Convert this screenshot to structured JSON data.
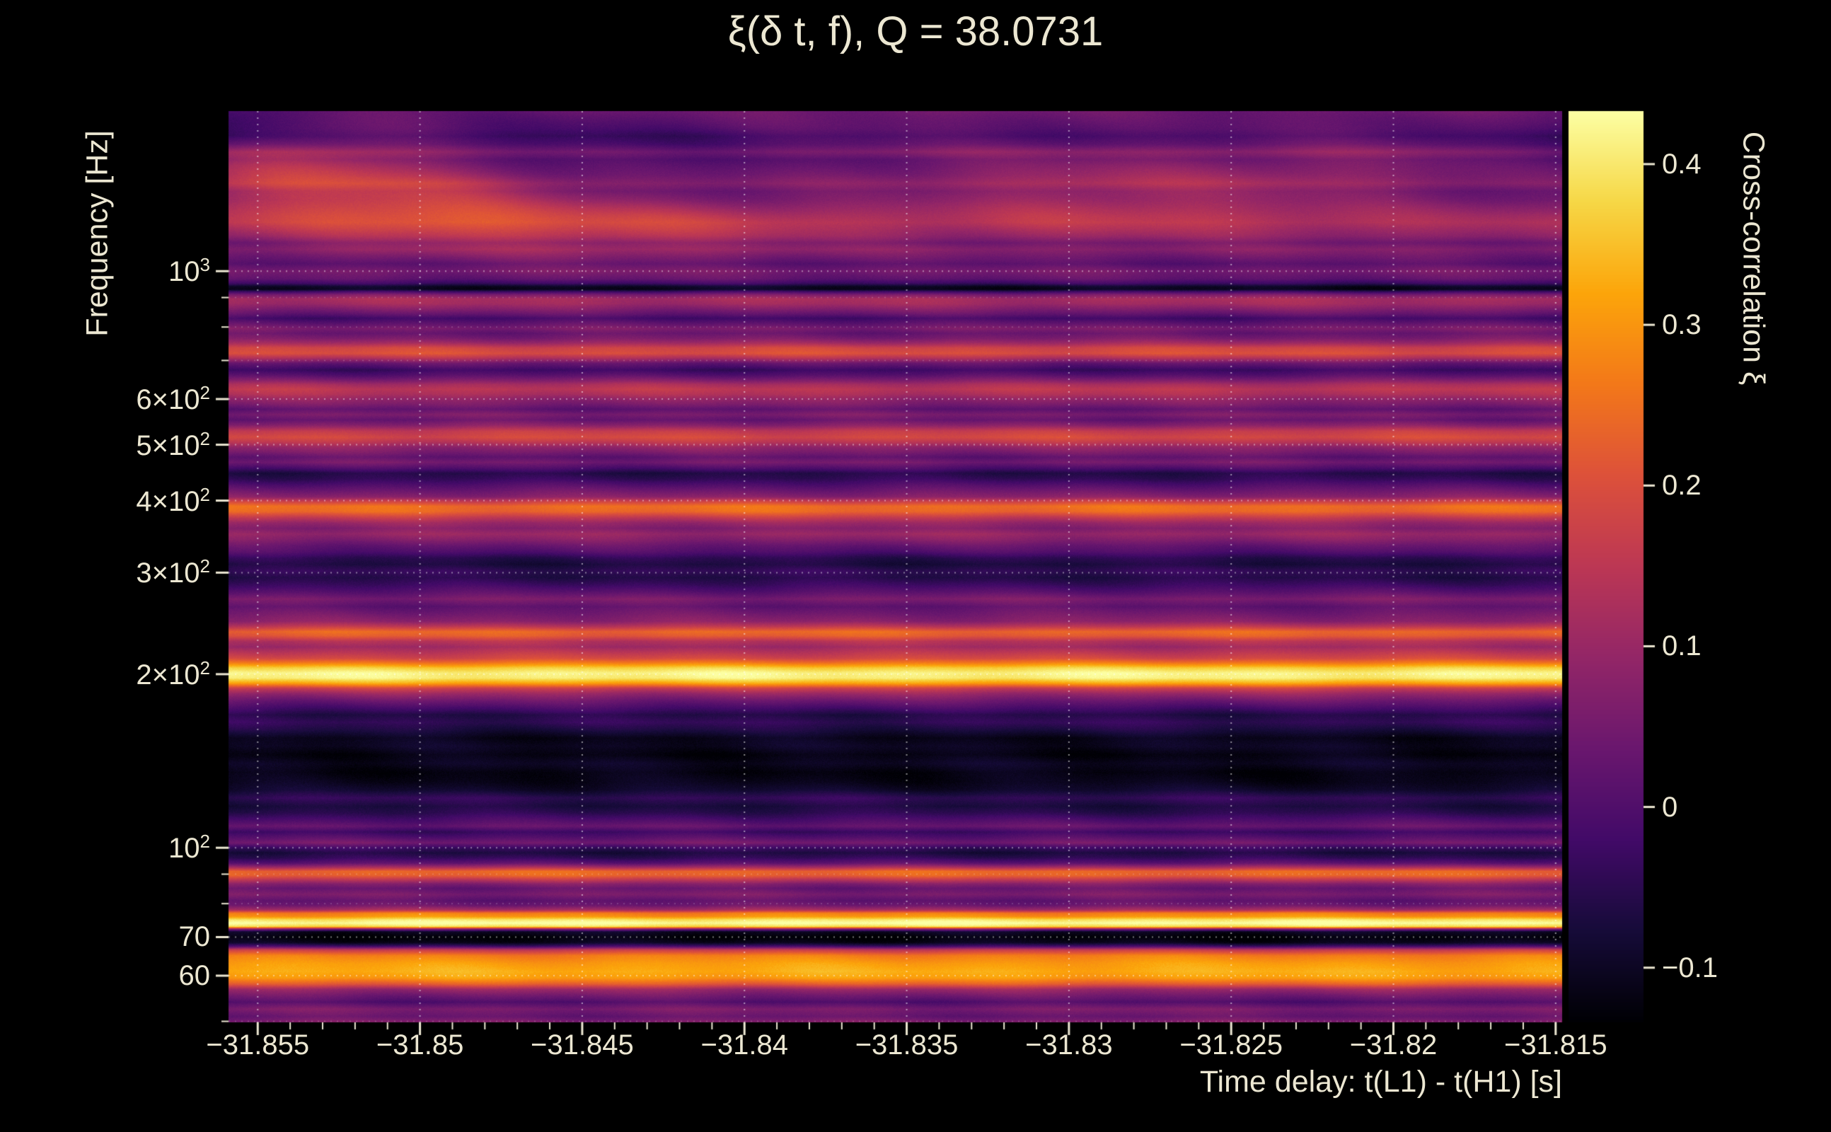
{
  "colors": {
    "background": "#000000",
    "text": "#ece7d2",
    "grid": "#ffffff"
  },
  "chart_data": {
    "type": "heatmap",
    "title": "ξ(δ t, f), Q = 38.0731",
    "xlabel": "Time delay: t(L1) - t(H1) [s]",
    "ylabel": "Frequency [Hz]",
    "colorbar_label": "Cross-correlation ξ",
    "colormap": "inferno",
    "x_range": [
      -31.8559,
      -31.8148
    ],
    "y_range": [
      49.8,
      1895
    ],
    "y_scale": "log",
    "color_range": [
      -0.134,
      0.433
    ],
    "x_ticks": [
      {
        "value": -31.855,
        "label": "−31.855"
      },
      {
        "value": -31.85,
        "label": "−31.85"
      },
      {
        "value": -31.845,
        "label": "−31.845"
      },
      {
        "value": -31.84,
        "label": "−31.84"
      },
      {
        "value": -31.835,
        "label": "−31.835"
      },
      {
        "value": -31.83,
        "label": "−31.83"
      },
      {
        "value": -31.825,
        "label": "−31.825"
      },
      {
        "value": -31.82,
        "label": "−31.82"
      },
      {
        "value": -31.815,
        "label": "−31.815"
      }
    ],
    "x_minor_step": 0.001,
    "y_ticks": [
      {
        "value": 1000,
        "base": "10",
        "exp": "3"
      },
      {
        "value": 600,
        "base": "6×10",
        "exp": "2"
      },
      {
        "value": 500,
        "base": "5×10",
        "exp": "2"
      },
      {
        "value": 400,
        "base": "4×10",
        "exp": "2"
      },
      {
        "value": 300,
        "base": "3×10",
        "exp": "2"
      },
      {
        "value": 200,
        "base": "2×10",
        "exp": "2"
      },
      {
        "value": 100,
        "base": "10",
        "exp": "2"
      },
      {
        "value": 70,
        "base": "70",
        "exp": ""
      },
      {
        "value": 60,
        "base": "60",
        "exp": ""
      }
    ],
    "y_minor_ticks": [
      50,
      80,
      90,
      700,
      800,
      900
    ],
    "colorbar_ticks": [
      {
        "value": 0.4,
        "label": "0.4"
      },
      {
        "value": 0.3,
        "label": "0.3"
      },
      {
        "value": 0.2,
        "label": "0.2"
      },
      {
        "value": 0.1,
        "label": "0.1"
      },
      {
        "value": 0,
        "label": "0"
      },
      {
        "value": -0.1,
        "label": "−0.1"
      }
    ],
    "colormap_stops": [
      [
        0.0,
        "#000004"
      ],
      [
        0.1,
        "#160b39"
      ],
      [
        0.2,
        "#420a68"
      ],
      [
        0.3,
        "#6a176e"
      ],
      [
        0.4,
        "#932667"
      ],
      [
        0.5,
        "#bc3754"
      ],
      [
        0.6,
        "#dd513a"
      ],
      [
        0.7,
        "#f37819"
      ],
      [
        0.8,
        "#fca50a"
      ],
      [
        0.9,
        "#f6d746"
      ],
      [
        1.0,
        "#fcffa4"
      ]
    ],
    "ripple_amp": 0.018,
    "grain_amp": 0.016,
    "bands": [
      [
        49.8,
        0.07
      ],
      [
        51,
        0.03
      ],
      [
        52.5,
        0.06
      ],
      [
        54,
        0.0
      ],
      [
        55.5,
        0.05
      ],
      [
        56.8,
        0.1
      ],
      [
        58,
        0.22
      ],
      [
        59.5,
        0.31
      ],
      [
        61,
        0.33
      ],
      [
        63,
        0.31
      ],
      [
        65,
        0.27
      ],
      [
        66.5,
        0.16
      ],
      [
        67.5,
        -0.02
      ],
      [
        68.5,
        -0.11
      ],
      [
        70,
        -0.13
      ],
      [
        71.5,
        -0.1
      ],
      [
        72.3,
        0.08
      ],
      [
        73,
        0.38
      ],
      [
        74,
        0.44
      ],
      [
        75,
        0.4
      ],
      [
        76,
        0.3
      ],
      [
        77,
        0.27
      ],
      [
        78,
        0.12
      ],
      [
        79.5,
        0.04
      ],
      [
        81,
        0.02
      ],
      [
        83,
        0.06
      ],
      [
        85,
        0.03
      ],
      [
        86.5,
        0.07
      ],
      [
        88,
        0.15
      ],
      [
        89.5,
        0.23
      ],
      [
        91,
        0.24
      ],
      [
        92.5,
        0.12
      ],
      [
        94,
        0.02
      ],
      [
        96,
        -0.04
      ],
      [
        98,
        -0.07
      ],
      [
        100,
        -0.03
      ],
      [
        102,
        0.05
      ],
      [
        104,
        0.01
      ],
      [
        106.5,
        -0.03
      ],
      [
        109,
        0.03
      ],
      [
        112,
        -0.01
      ],
      [
        115,
        -0.05
      ],
      [
        118,
        -0.07
      ],
      [
        122,
        -0.04
      ],
      [
        126,
        -0.09
      ],
      [
        130,
        -0.11
      ],
      [
        135,
        -0.12
      ],
      [
        140,
        -0.1
      ],
      [
        145,
        -0.12
      ],
      [
        150,
        -0.1
      ],
      [
        155,
        -0.11
      ],
      [
        160,
        -0.07
      ],
      [
        165,
        -0.04
      ],
      [
        170,
        -0.06
      ],
      [
        175,
        -0.01
      ],
      [
        180,
        0.04
      ],
      [
        185,
        0.1
      ],
      [
        189,
        0.17
      ],
      [
        193,
        0.32
      ],
      [
        197,
        0.41
      ],
      [
        201,
        0.42
      ],
      [
        205,
        0.37
      ],
      [
        209,
        0.27
      ],
      [
        213,
        0.19
      ],
      [
        218,
        0.15
      ],
      [
        223,
        0.11
      ],
      [
        228,
        0.14
      ],
      [
        233,
        0.22
      ],
      [
        237,
        0.24
      ],
      [
        242,
        0.15
      ],
      [
        247,
        0.08
      ],
      [
        254,
        0.05
      ],
      [
        262,
        0.02
      ],
      [
        270,
        0.06
      ],
      [
        278,
        0.01
      ],
      [
        286,
        -0.03
      ],
      [
        294,
        -0.06
      ],
      [
        302,
        -0.04
      ],
      [
        310,
        -0.07
      ],
      [
        318,
        -0.05
      ],
      [
        326,
        0.0
      ],
      [
        334,
        0.03
      ],
      [
        342,
        0.07
      ],
      [
        350,
        0.1
      ],
      [
        358,
        0.07
      ],
      [
        366,
        0.1
      ],
      [
        374,
        0.16
      ],
      [
        383,
        0.24
      ],
      [
        391,
        0.25
      ],
      [
        398,
        0.18
      ],
      [
        406,
        0.08
      ],
      [
        416,
        0.04
      ],
      [
        426,
        0.0
      ],
      [
        436,
        -0.04
      ],
      [
        446,
        -0.06
      ],
      [
        456,
        0.0
      ],
      [
        466,
        0.05
      ],
      [
        476,
        0.02
      ],
      [
        486,
        0.06
      ],
      [
        495,
        0.09
      ],
      [
        505,
        0.15
      ],
      [
        515,
        0.19
      ],
      [
        528,
        0.16
      ],
      [
        540,
        0.08
      ],
      [
        552,
        0.03
      ],
      [
        564,
        0.06
      ],
      [
        576,
        0.02
      ],
      [
        588,
        0.06
      ],
      [
        600,
        0.09
      ],
      [
        612,
        0.13
      ],
      [
        624,
        0.15
      ],
      [
        636,
        0.12
      ],
      [
        648,
        0.06
      ],
      [
        660,
        0.01
      ],
      [
        674,
        -0.03
      ],
      [
        692,
        0.03
      ],
      [
        706,
        0.13
      ],
      [
        720,
        0.2
      ],
      [
        736,
        0.18
      ],
      [
        750,
        0.11
      ],
      [
        764,
        0.06
      ],
      [
        780,
        0.03
      ],
      [
        796,
        0.06
      ],
      [
        812,
        0.02
      ],
      [
        828,
        -0.02
      ],
      [
        844,
        0.03
      ],
      [
        860,
        0.07
      ],
      [
        878,
        0.11
      ],
      [
        895,
        0.12
      ],
      [
        910,
        0.06
      ],
      [
        922,
        -0.03
      ],
      [
        930,
        -0.11
      ],
      [
        940,
        -0.1
      ],
      [
        952,
        -0.03
      ],
      [
        970,
        0.02
      ],
      [
        1000,
        0.05
      ],
      [
        1030,
        0.01
      ],
      [
        1060,
        0.04
      ],
      [
        1090,
        0.07
      ],
      [
        1120,
        0.04
      ],
      [
        1150,
        0.08
      ],
      [
        1180,
        0.1
      ],
      [
        1215,
        0.12
      ],
      [
        1250,
        0.1
      ],
      [
        1290,
        0.07
      ],
      [
        1330,
        0.04
      ],
      [
        1375,
        0.02
      ],
      [
        1420,
        0.05
      ],
      [
        1465,
        0.02
      ],
      [
        1510,
        0.0
      ],
      [
        1560,
        -0.02
      ],
      [
        1610,
        0.02
      ],
      [
        1660,
        -0.03
      ],
      [
        1715,
        -0.05
      ],
      [
        1770,
        -0.02
      ],
      [
        1830,
        0.0
      ],
      [
        1895,
        0.02
      ]
    ],
    "patches": [
      {
        "t": -31.854,
        "f": 1520,
        "st": 0.0035,
        "slf": 0.055,
        "amp": 0.14
      },
      {
        "t": -31.8495,
        "f": 1300,
        "st": 0.003,
        "slf": 0.045,
        "amp": 0.09
      },
      {
        "t": -31.8435,
        "f": 1180,
        "st": 0.004,
        "slf": 0.04,
        "amp": 0.06
      },
      {
        "t": -31.8285,
        "f": 1420,
        "st": 0.0045,
        "slf": 0.055,
        "amp": 0.08
      },
      {
        "t": -31.8205,
        "f": 1600,
        "st": 0.0035,
        "slf": 0.05,
        "amp": 0.06
      },
      {
        "t": -31.8565,
        "f": 1850,
        "st": 0.0025,
        "slf": 0.045,
        "amp": -0.08
      },
      {
        "t": -31.836,
        "f": 1700,
        "st": 0.005,
        "slf": 0.05,
        "amp": 0.04
      }
    ]
  }
}
